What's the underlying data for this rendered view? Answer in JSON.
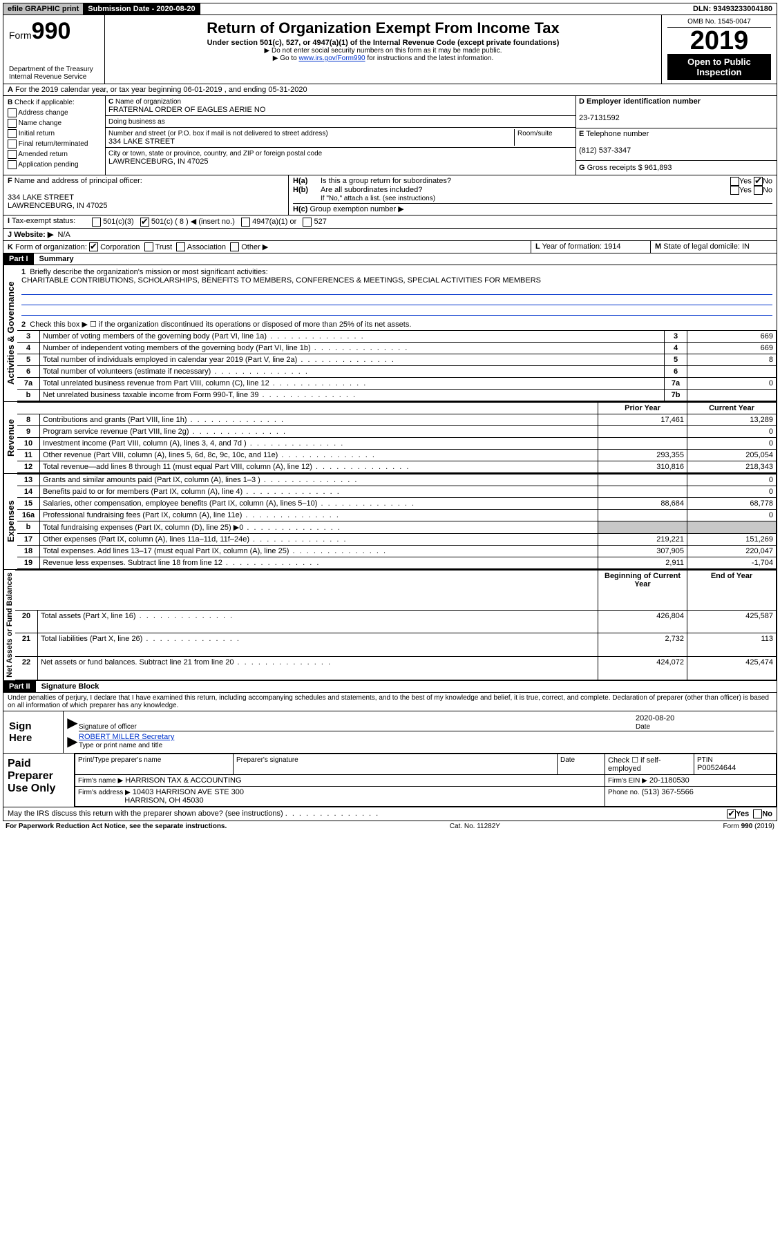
{
  "topbar": {
    "efile": "efile GRAPHIC print",
    "submission_label": "Submission Date - 2020-08-20",
    "dln_label": "DLN: 93493233004180"
  },
  "header": {
    "form_label": "Form",
    "form_number": "990",
    "dept": "Department of the Treasury",
    "irs": "Internal Revenue Service",
    "title": "Return of Organization Exempt From Income Tax",
    "subtitle": "Under section 501(c), 527, or 4947(a)(1) of the Internal Revenue Code (except private foundations)",
    "note1": "Do not enter social security numbers on this form as it may be made public.",
    "note2_pre": "Go to ",
    "note2_link": "www.irs.gov/Form990",
    "note2_post": " for instructions and the latest information.",
    "omb": "OMB No. 1545-0047",
    "year": "2019",
    "open_public": "Open to Public Inspection"
  },
  "period": {
    "line": "For the 2019 calendar year, or tax year beginning 06-01-2019    , and ending 05-31-2020"
  },
  "boxB": {
    "label": "Check if applicable:",
    "items": [
      "Address change",
      "Name change",
      "Initial return",
      "Final return/terminated",
      "Amended return",
      "Application pending"
    ]
  },
  "boxC": {
    "name_label": "Name of organization",
    "name": "FRATERNAL ORDER OF EAGLES AERIE NO",
    "dba_label": "Doing business as",
    "street_label": "Number and street (or P.O. box if mail is not delivered to street address)",
    "room_label": "Room/suite",
    "street": "334 LAKE STREET",
    "city_label": "City or town, state or province, country, and ZIP or foreign postal code",
    "city": "LAWRENCEBURG, IN  47025"
  },
  "boxD": {
    "label": "Employer identification number",
    "value": "23-7131592"
  },
  "boxE": {
    "label": "Telephone number",
    "value": "(812) 537-3347"
  },
  "boxG": {
    "label": "Gross receipts $",
    "value": "961,893"
  },
  "boxF": {
    "label": "Name and address of principal officer:",
    "addr1": "334 LAKE STREET",
    "addr2": "LAWRENCEBURG, IN  47025"
  },
  "boxH": {
    "a_label": "Is this a group return for subordinates?",
    "b_label": "Are all subordinates included?",
    "b_note": "If \"No,\" attach a list. (see instructions)",
    "c_label": "Group exemption number ▶",
    "yes": "Yes",
    "no": "No"
  },
  "taxExempt": {
    "label": "Tax-exempt status:",
    "opt1": "501(c)(3)",
    "opt2": "501(c) ( 8 ) ◀ (insert no.)",
    "opt3": "4947(a)(1) or",
    "opt4": "527"
  },
  "boxJ": {
    "label": "Website: ▶",
    "value": "N/A"
  },
  "boxK": {
    "label": "Form of organization:",
    "opts": [
      "Corporation",
      "Trust",
      "Association",
      "Other ▶"
    ]
  },
  "boxL": {
    "label": "Year of formation:",
    "value": "1914"
  },
  "boxM": {
    "label": "State of legal domicile:",
    "value": "IN"
  },
  "part1": {
    "header": "Part I",
    "title": "Summary",
    "side_labels": [
      "Activities & Governance",
      "Revenue",
      "Expenses",
      "Net Assets or Fund Balances"
    ],
    "q1_label": "Briefly describe the organization's mission or most significant activities:",
    "q1_text": "CHARITABLE CONTRIBUTIONS, SCHOLARSHIPS, BENEFITS TO MEMBERS, CONFERENCES & MEETINGS, SPECIAL ACTIVITIES FOR MEMBERS",
    "q2": "Check this box ▶ ☐ if the organization discontinued its operations or disposed of more than 25% of its net assets.",
    "rows_gov": [
      {
        "n": "3",
        "t": "Number of voting members of the governing body (Part VI, line 1a)",
        "box": "3",
        "v": "669"
      },
      {
        "n": "4",
        "t": "Number of independent voting members of the governing body (Part VI, line 1b)",
        "box": "4",
        "v": "669"
      },
      {
        "n": "5",
        "t": "Total number of individuals employed in calendar year 2019 (Part V, line 2a)",
        "box": "5",
        "v": "8"
      },
      {
        "n": "6",
        "t": "Total number of volunteers (estimate if necessary)",
        "box": "6",
        "v": ""
      },
      {
        "n": "7a",
        "t": "Total unrelated business revenue from Part VIII, column (C), line 12",
        "box": "7a",
        "v": "0"
      },
      {
        "n": "b",
        "t": "Net unrelated business taxable income from Form 990-T, line 39",
        "box": "7b",
        "v": ""
      }
    ],
    "col_prior": "Prior Year",
    "col_current": "Current Year",
    "col_boy": "Beginning of Current Year",
    "col_eoy": "End of Year",
    "rows_rev": [
      {
        "n": "8",
        "t": "Contributions and grants (Part VIII, line 1h)",
        "p": "17,461",
        "c": "13,289"
      },
      {
        "n": "9",
        "t": "Program service revenue (Part VIII, line 2g)",
        "p": "",
        "c": "0"
      },
      {
        "n": "10",
        "t": "Investment income (Part VIII, column (A), lines 3, 4, and 7d )",
        "p": "",
        "c": "0"
      },
      {
        "n": "11",
        "t": "Other revenue (Part VIII, column (A), lines 5, 6d, 8c, 9c, 10c, and 11e)",
        "p": "293,355",
        "c": "205,054"
      },
      {
        "n": "12",
        "t": "Total revenue—add lines 8 through 11 (must equal Part VIII, column (A), line 12)",
        "p": "310,816",
        "c": "218,343"
      }
    ],
    "rows_exp": [
      {
        "n": "13",
        "t": "Grants and similar amounts paid (Part IX, column (A), lines 1–3 )",
        "p": "",
        "c": "0"
      },
      {
        "n": "14",
        "t": "Benefits paid to or for members (Part IX, column (A), line 4)",
        "p": "",
        "c": "0"
      },
      {
        "n": "15",
        "t": "Salaries, other compensation, employee benefits (Part IX, column (A), lines 5–10)",
        "p": "88,684",
        "c": "68,778"
      },
      {
        "n": "16a",
        "t": "Professional fundraising fees (Part IX, column (A), line 11e)",
        "p": "",
        "c": "0"
      },
      {
        "n": "b",
        "t": "Total fundraising expenses (Part IX, column (D), line 25) ▶0",
        "p": "GRAY",
        "c": "GRAY"
      },
      {
        "n": "17",
        "t": "Other expenses (Part IX, column (A), lines 11a–11d, 11f–24e)",
        "p": "219,221",
        "c": "151,269"
      },
      {
        "n": "18",
        "t": "Total expenses. Add lines 13–17 (must equal Part IX, column (A), line 25)",
        "p": "307,905",
        "c": "220,047"
      },
      {
        "n": "19",
        "t": "Revenue less expenses. Subtract line 18 from line 12",
        "p": "2,911",
        "c": "-1,704"
      }
    ],
    "rows_net": [
      {
        "n": "20",
        "t": "Total assets (Part X, line 16)",
        "p": "426,804",
        "c": "425,587"
      },
      {
        "n": "21",
        "t": "Total liabilities (Part X, line 26)",
        "p": "2,732",
        "c": "113"
      },
      {
        "n": "22",
        "t": "Net assets or fund balances. Subtract line 21 from line 20",
        "p": "424,072",
        "c": "425,474"
      }
    ]
  },
  "part2": {
    "header": "Part II",
    "title": "Signature Block",
    "perjury": "Under penalties of perjury, I declare that I have examined this return, including accompanying schedules and statements, and to the best of my knowledge and belief, it is true, correct, and complete. Declaration of preparer (other than officer) is based on all information of which preparer has any knowledge.",
    "sign_here": "Sign Here",
    "sig_officer": "Signature of officer",
    "date_label": "Date",
    "sig_date": "2020-08-20",
    "officer_name": "ROBERT MILLER Secretary",
    "type_name": "Type or print name and title",
    "paid": "Paid Preparer Use Only",
    "prep_name_label": "Print/Type preparer's name",
    "prep_sig_label": "Preparer's signature",
    "check_self": "Check ☐ if self-employed",
    "ptin_label": "PTIN",
    "ptin": "P00524644",
    "firm_name_label": "Firm's name    ▶",
    "firm_name": "HARRISON TAX & ACCOUNTING",
    "firm_ein_label": "Firm's EIN ▶",
    "firm_ein": "20-1180530",
    "firm_addr_label": "Firm's address ▶",
    "firm_addr1": "10403 HARRISON AVE STE 300",
    "firm_addr2": "HARRISON, OH  45030",
    "phone_label": "Phone no.",
    "phone": "(513) 367-5566",
    "discuss": "May the IRS discuss this return with the preparer shown above? (see instructions)"
  },
  "footer": {
    "left": "For Paperwork Reduction Act Notice, see the separate instructions.",
    "mid": "Cat. No. 11282Y",
    "right": "Form 990 (2019)"
  }
}
